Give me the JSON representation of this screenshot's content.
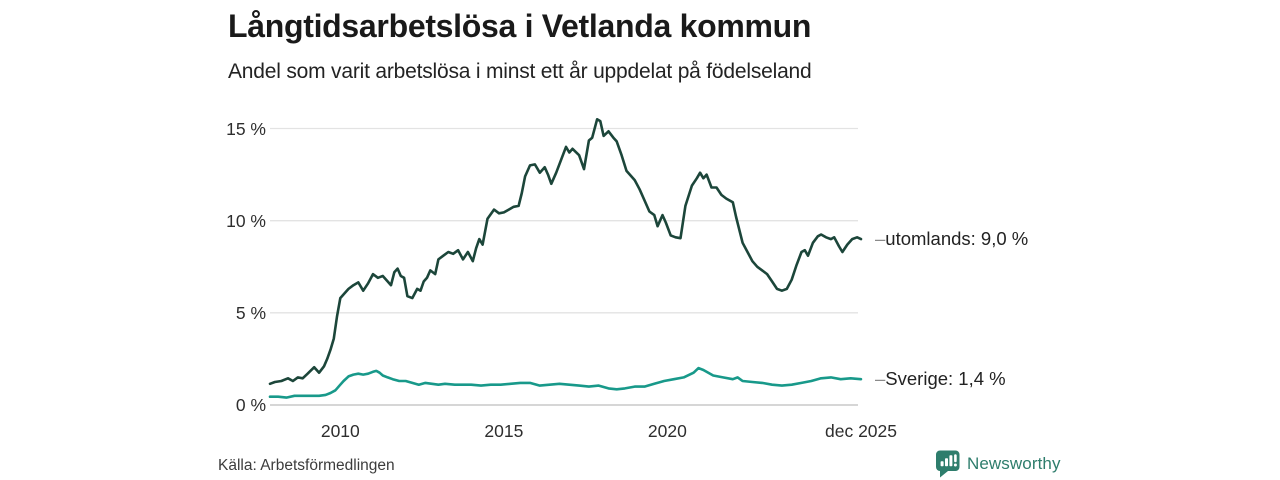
{
  "header": {
    "title": "Långtidsarbetslösa i Vetlanda kommun",
    "subtitle": "Andel som varit arbetslösa i minst ett år uppdelat på födelseland"
  },
  "footer": {
    "source": "Källa: Arbetsförmedlingen",
    "brand": "Newsworthy"
  },
  "colors": {
    "utomlands_line": "#1c463a",
    "sverige_line": "#18998a",
    "gridline": "#e3e3e3",
    "baseline": "#c8c8c8",
    "label_dash": "#8a8a8a",
    "brand_teal": "#2e7d6c"
  },
  "chart_data": {
    "type": "line",
    "title": "Långtidsarbetslösa i Vetlanda kommun",
    "subtitle": "Andel som varit arbetslösa i minst ett år uppdelat på födelseland",
    "xlabel": "",
    "ylabel": "",
    "unit": "%",
    "grid": true,
    "legend_position": "end-labels-right",
    "x_axis": {
      "min": 2007.85,
      "max": 2025.95,
      "ticks": [
        {
          "label": "2010",
          "value": 2010
        },
        {
          "label": "2015",
          "value": 2015
        },
        {
          "label": "2020",
          "value": 2020
        },
        {
          "label": "dec 2025",
          "value": 2025.92
        }
      ]
    },
    "y_axis": {
      "min": 0,
      "max": 15.5,
      "ticks": [
        {
          "label": "15 %",
          "value": 15
        },
        {
          "label": "10 %",
          "value": 10
        },
        {
          "label": "5 %",
          "value": 5
        },
        {
          "label": "0 %",
          "value": 0
        }
      ]
    },
    "series": [
      {
        "name": "utomlands",
        "end_label": "utomlands: 9,0 %",
        "end_value": "9,0 %",
        "color": "#1c463a",
        "points": [
          [
            2007.85,
            1.15
          ],
          [
            2008.0,
            1.25
          ],
          [
            2008.2,
            1.3
          ],
          [
            2008.4,
            1.45
          ],
          [
            2008.55,
            1.3
          ],
          [
            2008.7,
            1.5
          ],
          [
            2008.85,
            1.45
          ],
          [
            2009.0,
            1.7
          ],
          [
            2009.2,
            2.05
          ],
          [
            2009.35,
            1.75
          ],
          [
            2009.5,
            2.1
          ],
          [
            2009.6,
            2.5
          ],
          [
            2009.7,
            3.0
          ],
          [
            2009.8,
            3.6
          ],
          [
            2009.9,
            4.8
          ],
          [
            2010.0,
            5.8
          ],
          [
            2010.1,
            6.0
          ],
          [
            2010.25,
            6.3
          ],
          [
            2010.4,
            6.5
          ],
          [
            2010.55,
            6.65
          ],
          [
            2010.7,
            6.2
          ],
          [
            2010.85,
            6.6
          ],
          [
            2011.0,
            7.1
          ],
          [
            2011.15,
            6.9
          ],
          [
            2011.3,
            7.0
          ],
          [
            2011.45,
            6.7
          ],
          [
            2011.55,
            6.5
          ],
          [
            2011.65,
            7.2
          ],
          [
            2011.75,
            7.4
          ],
          [
            2011.85,
            7.0
          ],
          [
            2011.95,
            6.9
          ],
          [
            2012.05,
            5.9
          ],
          [
            2012.2,
            5.8
          ],
          [
            2012.35,
            6.3
          ],
          [
            2012.45,
            6.2
          ],
          [
            2012.55,
            6.7
          ],
          [
            2012.65,
            6.9
          ],
          [
            2012.75,
            7.3
          ],
          [
            2012.9,
            7.1
          ],
          [
            2013.0,
            7.9
          ],
          [
            2013.15,
            8.1
          ],
          [
            2013.3,
            8.3
          ],
          [
            2013.45,
            8.2
          ],
          [
            2013.6,
            8.4
          ],
          [
            2013.75,
            7.9
          ],
          [
            2013.9,
            8.3
          ],
          [
            2014.05,
            7.8
          ],
          [
            2014.15,
            8.5
          ],
          [
            2014.25,
            9.0
          ],
          [
            2014.35,
            8.7
          ],
          [
            2014.5,
            10.1
          ],
          [
            2014.7,
            10.6
          ],
          [
            2014.85,
            10.4
          ],
          [
            2015.0,
            10.45
          ],
          [
            2015.15,
            10.6
          ],
          [
            2015.3,
            10.75
          ],
          [
            2015.45,
            10.8
          ],
          [
            2015.55,
            11.5
          ],
          [
            2015.65,
            12.4
          ],
          [
            2015.8,
            13.0
          ],
          [
            2015.95,
            13.05
          ],
          [
            2016.1,
            12.6
          ],
          [
            2016.25,
            12.9
          ],
          [
            2016.35,
            12.5
          ],
          [
            2016.45,
            12.0
          ],
          [
            2016.6,
            12.6
          ],
          [
            2016.75,
            13.3
          ],
          [
            2016.9,
            14.0
          ],
          [
            2017.0,
            13.7
          ],
          [
            2017.1,
            13.9
          ],
          [
            2017.3,
            13.55
          ],
          [
            2017.45,
            12.8
          ],
          [
            2017.6,
            14.35
          ],
          [
            2017.7,
            14.5
          ],
          [
            2017.85,
            15.5
          ],
          [
            2017.95,
            15.4
          ],
          [
            2018.05,
            14.6
          ],
          [
            2018.2,
            14.85
          ],
          [
            2018.35,
            14.5
          ],
          [
            2018.45,
            14.3
          ],
          [
            2018.6,
            13.55
          ],
          [
            2018.75,
            12.7
          ],
          [
            2019.0,
            12.2
          ],
          [
            2019.15,
            11.7
          ],
          [
            2019.3,
            11.1
          ],
          [
            2019.45,
            10.5
          ],
          [
            2019.6,
            10.3
          ],
          [
            2019.7,
            9.7
          ],
          [
            2019.85,
            10.3
          ],
          [
            2019.95,
            9.9
          ],
          [
            2020.1,
            9.2
          ],
          [
            2020.25,
            9.1
          ],
          [
            2020.4,
            9.05
          ],
          [
            2020.55,
            10.8
          ],
          [
            2020.75,
            11.9
          ],
          [
            2020.9,
            12.3
          ],
          [
            2021.0,
            12.6
          ],
          [
            2021.1,
            12.3
          ],
          [
            2021.2,
            12.5
          ],
          [
            2021.35,
            11.8
          ],
          [
            2021.5,
            11.8
          ],
          [
            2021.65,
            11.4
          ],
          [
            2021.8,
            11.2
          ],
          [
            2022.0,
            11.0
          ],
          [
            2022.1,
            10.2
          ],
          [
            2022.3,
            8.8
          ],
          [
            2022.45,
            8.3
          ],
          [
            2022.6,
            7.8
          ],
          [
            2022.75,
            7.5
          ],
          [
            2022.9,
            7.3
          ],
          [
            2023.05,
            7.1
          ],
          [
            2023.2,
            6.7
          ],
          [
            2023.35,
            6.3
          ],
          [
            2023.5,
            6.2
          ],
          [
            2023.65,
            6.3
          ],
          [
            2023.8,
            6.8
          ],
          [
            2023.95,
            7.6
          ],
          [
            2024.1,
            8.3
          ],
          [
            2024.2,
            8.4
          ],
          [
            2024.3,
            8.1
          ],
          [
            2024.45,
            8.8
          ],
          [
            2024.6,
            9.15
          ],
          [
            2024.7,
            9.25
          ],
          [
            2024.85,
            9.1
          ],
          [
            2025.0,
            9.0
          ],
          [
            2025.1,
            9.1
          ],
          [
            2025.25,
            8.6
          ],
          [
            2025.35,
            8.3
          ],
          [
            2025.5,
            8.7
          ],
          [
            2025.65,
            9.0
          ],
          [
            2025.8,
            9.1
          ],
          [
            2025.92,
            9.0
          ]
        ]
      },
      {
        "name": "Sverige",
        "end_label": "Sverige: 1,4 %",
        "end_value": "1,4 %",
        "color": "#18998a",
        "points": [
          [
            2007.85,
            0.45
          ],
          [
            2008.1,
            0.45
          ],
          [
            2008.35,
            0.4
          ],
          [
            2008.6,
            0.5
          ],
          [
            2008.85,
            0.5
          ],
          [
            2009.1,
            0.5
          ],
          [
            2009.35,
            0.5
          ],
          [
            2009.55,
            0.55
          ],
          [
            2009.7,
            0.65
          ],
          [
            2009.85,
            0.8
          ],
          [
            2010.0,
            1.1
          ],
          [
            2010.1,
            1.3
          ],
          [
            2010.25,
            1.55
          ],
          [
            2010.4,
            1.65
          ],
          [
            2010.55,
            1.7
          ],
          [
            2010.7,
            1.65
          ],
          [
            2010.85,
            1.7
          ],
          [
            2011.0,
            1.8
          ],
          [
            2011.1,
            1.85
          ],
          [
            2011.2,
            1.75
          ],
          [
            2011.3,
            1.6
          ],
          [
            2011.45,
            1.5
          ],
          [
            2011.6,
            1.4
          ],
          [
            2011.8,
            1.3
          ],
          [
            2012.0,
            1.3
          ],
          [
            2012.2,
            1.2
          ],
          [
            2012.4,
            1.1
          ],
          [
            2012.6,
            1.2
          ],
          [
            2012.8,
            1.15
          ],
          [
            2013.0,
            1.1
          ],
          [
            2013.2,
            1.15
          ],
          [
            2013.5,
            1.1
          ],
          [
            2013.8,
            1.1
          ],
          [
            2014.0,
            1.1
          ],
          [
            2014.3,
            1.05
          ],
          [
            2014.6,
            1.1
          ],
          [
            2014.9,
            1.1
          ],
          [
            2015.2,
            1.15
          ],
          [
            2015.5,
            1.2
          ],
          [
            2015.8,
            1.2
          ],
          [
            2016.1,
            1.05
          ],
          [
            2016.4,
            1.1
          ],
          [
            2016.7,
            1.15
          ],
          [
            2017.0,
            1.1
          ],
          [
            2017.3,
            1.05
          ],
          [
            2017.6,
            1.0
          ],
          [
            2017.9,
            1.05
          ],
          [
            2018.2,
            0.9
          ],
          [
            2018.45,
            0.85
          ],
          [
            2018.7,
            0.9
          ],
          [
            2019.0,
            1.0
          ],
          [
            2019.3,
            1.0
          ],
          [
            2019.6,
            1.15
          ],
          [
            2019.9,
            1.3
          ],
          [
            2020.2,
            1.4
          ],
          [
            2020.5,
            1.5
          ],
          [
            2020.8,
            1.75
          ],
          [
            2020.95,
            2.0
          ],
          [
            2021.1,
            1.9
          ],
          [
            2021.4,
            1.6
          ],
          [
            2021.7,
            1.5
          ],
          [
            2022.0,
            1.4
          ],
          [
            2022.15,
            1.5
          ],
          [
            2022.3,
            1.3
          ],
          [
            2022.6,
            1.25
          ],
          [
            2022.9,
            1.2
          ],
          [
            2023.2,
            1.1
          ],
          [
            2023.5,
            1.05
          ],
          [
            2023.8,
            1.1
          ],
          [
            2024.1,
            1.2
          ],
          [
            2024.4,
            1.3
          ],
          [
            2024.7,
            1.45
          ],
          [
            2025.0,
            1.5
          ],
          [
            2025.3,
            1.4
          ],
          [
            2025.6,
            1.45
          ],
          [
            2025.92,
            1.4
          ]
        ]
      }
    ]
  }
}
